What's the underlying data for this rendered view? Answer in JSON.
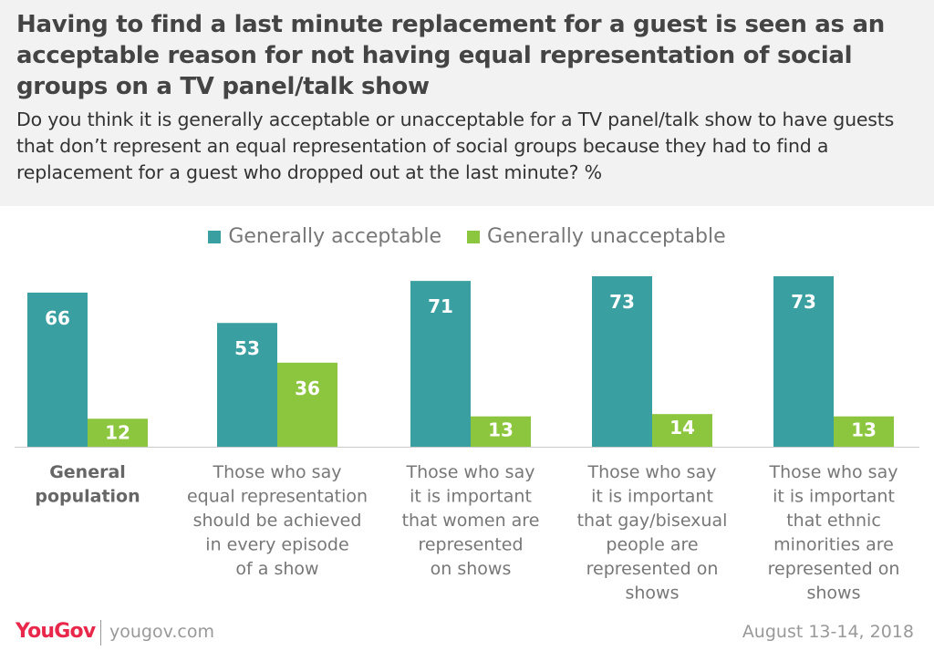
{
  "header": {
    "title": "Having to find a last minute replacement for a guest is seen as an acceptable reason for not having equal representation of social groups on a TV panel/talk show",
    "subtitle": "Do you think it is generally acceptable or unacceptable for a TV panel/talk show to have guests that don’t represent an equal representation of social groups because they had to find a replacement for a guest who dropped out at the last minute? %"
  },
  "legend": {
    "acceptable": "Generally acceptable",
    "unacceptable": "Generally unacceptable"
  },
  "colors": {
    "acceptable": "#3a9fa0",
    "unacceptable": "#8cc63f"
  },
  "chart_data": {
    "type": "bar",
    "categories": [
      [
        "General",
        "population"
      ],
      [
        "Those who say",
        "equal representation",
        "should be achieved",
        "in every episode",
        "of a show"
      ],
      [
        "Those who say",
        "it is important",
        "that women are",
        "represented",
        "on shows"
      ],
      [
        "Those who say",
        "it is important",
        "that gay/bisexual",
        "people are",
        "represented on",
        "shows"
      ],
      [
        "Those who say",
        "it is important",
        "that ethnic",
        "minorities are",
        "represented on",
        "shows"
      ]
    ],
    "series": [
      {
        "name": "Generally acceptable",
        "values": [
          66,
          53,
          71,
          73,
          73
        ]
      },
      {
        "name": "Generally unacceptable",
        "values": [
          12,
          36,
          13,
          14,
          13
        ]
      }
    ],
    "ylim": [
      0,
      73
    ],
    "legend_position": "top-center"
  },
  "footer": {
    "logo": "YouGov",
    "site": "yougov.com",
    "date": "August 13-14, 2018"
  }
}
